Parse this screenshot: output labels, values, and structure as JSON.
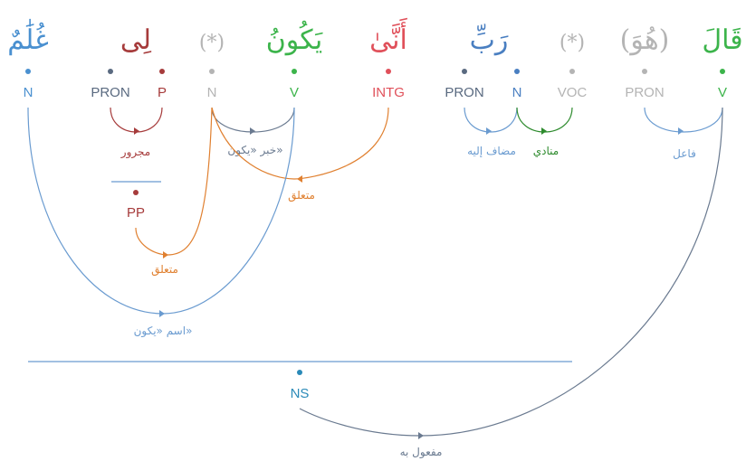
{
  "words": [
    {
      "text": "قَالَ",
      "color": "#3cb44b"
    },
    {
      "text": "(هُوَ)",
      "color": "#b4b4b4"
    },
    {
      "text": "(*)",
      "color": "#b4b4b4"
    },
    {
      "text": "رَبِّ",
      "color": "#4a7fc1"
    },
    {
      "text": "أَنَّىٰ",
      "color": "#e0505a"
    },
    {
      "text": "يَكُونُ",
      "color": "#3cb44b"
    },
    {
      "text": "(*)",
      "color": "#b4b4b4"
    },
    {
      "text": "لِى",
      "color": "#a63b3b"
    },
    {
      "text": "غُلَٰمٌ",
      "color": "#4a90d0"
    }
  ],
  "pos_tags": [
    {
      "text": "V",
      "color": "#3cb44b"
    },
    {
      "text": "PRON",
      "color": "#b4b4b4"
    },
    {
      "text": "VOC",
      "color": "#b4b4b4"
    },
    {
      "text": "N",
      "color": "#4a7fc1"
    },
    {
      "text": "PRON",
      "color": "#5a6a80"
    },
    {
      "text": "INTG",
      "color": "#e0505a"
    },
    {
      "text": "V",
      "color": "#3cb44b"
    },
    {
      "text": "N",
      "color": "#b4b4b4"
    },
    {
      "text": "P",
      "color": "#a63b3b"
    },
    {
      "text": "PRON",
      "color": "#5a6a80"
    },
    {
      "text": "N",
      "color": "#4a90d0"
    }
  ],
  "phrase_nodes": [
    {
      "text": "PP",
      "color": "#a63b3b"
    },
    {
      "text": "NS",
      "color": "#2a8ab8"
    }
  ],
  "relations": [
    {
      "text": "فاعل",
      "color": "#6a9bd0"
    },
    {
      "text": "مضاف إليه",
      "color": "#6a9bd0"
    },
    {
      "text": "منادي",
      "color": "#2e8b2e"
    },
    {
      "text": "خبر «يكون»",
      "color": "#6a7a90"
    },
    {
      "text": "متعلق",
      "color": "#e08030"
    },
    {
      "text": "مجرور",
      "color": "#a63b3b"
    },
    {
      "text": "متعلق",
      "color": "#e08030"
    },
    {
      "text": "اسم «يكون»",
      "color": "#6a9bd0"
    },
    {
      "text": "مفعول به",
      "color": "#6a7a90"
    }
  ]
}
